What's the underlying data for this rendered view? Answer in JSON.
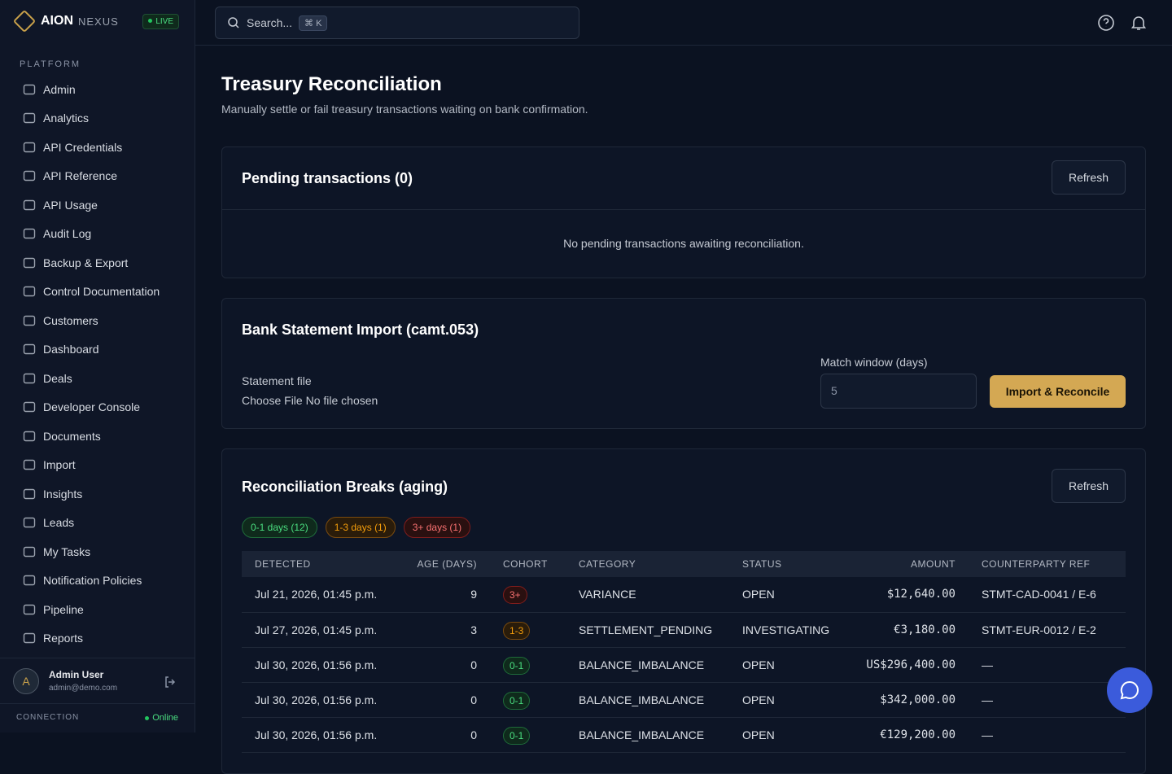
{
  "brand": {
    "name": "AION",
    "suffix": "NEXUS",
    "badge": "LIVE"
  },
  "search": {
    "placeholder": "Search...",
    "shortcut": "⌘ K"
  },
  "sidebar": {
    "section": "PLATFORM",
    "items": [
      "Admin",
      "Analytics",
      "API Credentials",
      "API Reference",
      "API Usage",
      "Audit Log",
      "Backup & Export",
      "Control Documentation",
      "Customers",
      "Dashboard",
      "Deals",
      "Developer Console",
      "Documents",
      "Import",
      "Insights",
      "Leads",
      "My Tasks",
      "Notification Policies",
      "Pipeline",
      "Reports"
    ]
  },
  "user": {
    "initial": "A",
    "name": "Admin User",
    "email": "admin@demo.com"
  },
  "connection": {
    "label": "CONNECTION",
    "status": "Online"
  },
  "page": {
    "title": "Treasury Reconciliation",
    "subtitle": "Manually settle or fail treasury transactions waiting on bank confirmation."
  },
  "pending": {
    "title": "Pending transactions (0)",
    "refresh": "Refresh",
    "empty": "No pending transactions awaiting reconciliation."
  },
  "import": {
    "title": "Bank Statement Import (camt.053)",
    "file_label": "Statement file",
    "file_button": "Choose File",
    "file_status": "No file chosen",
    "window_label": "Match window (days)",
    "window_value": "5",
    "submit": "Import & Reconcile"
  },
  "breaks": {
    "title": "Reconciliation Breaks (aging)",
    "refresh": "Refresh",
    "filters": [
      "0-1 days (12)",
      "1-3 days (1)",
      "3+ days (1)"
    ],
    "table": {
      "columns": [
        "DETECTED",
        "AGE (DAYS)",
        "COHORT",
        "CATEGORY",
        "STATUS",
        "AMOUNT",
        "COUNTERPARTY REF"
      ],
      "rows": [
        [
          "Jul 21, 2026, 01:45 p.m.",
          "9",
          "3+",
          "VARIANCE",
          "OPEN",
          "$12,640.00",
          "STMT-CAD-0041 / E-6"
        ],
        [
          "Jul 27, 2026, 01:45 p.m.",
          "3",
          "1-3",
          "SETTLEMENT_PENDING",
          "INVESTIGATING",
          "€3,180.00",
          "STMT-EUR-0012 / E-2"
        ],
        [
          "Jul 30, 2026, 01:56 p.m.",
          "0",
          "0-1",
          "BALANCE_IMBALANCE",
          "OPEN",
          "US$296,400.00",
          "—"
        ],
        [
          "Jul 30, 2026, 01:56 p.m.",
          "0",
          "0-1",
          "BALANCE_IMBALANCE",
          "OPEN",
          "$342,000.00",
          "—"
        ],
        [
          "Jul 30, 2026, 01:56 p.m.",
          "0",
          "0-1",
          "BALANCE_IMBALANCE",
          "OPEN",
          "€129,200.00",
          "—"
        ]
      ]
    }
  }
}
